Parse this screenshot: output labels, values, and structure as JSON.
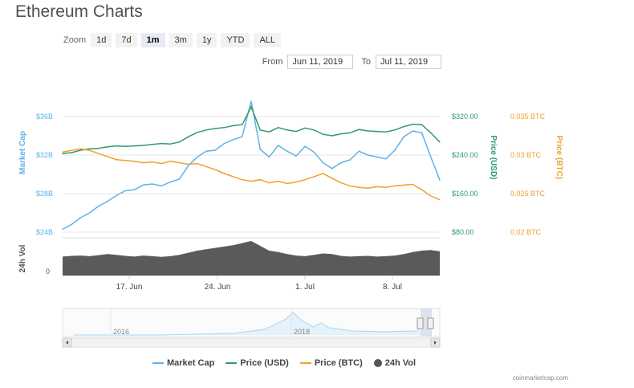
{
  "title": "Ethereum Charts",
  "zoom": {
    "label": "Zoom",
    "buttons": [
      "1d",
      "7d",
      "1m",
      "3m",
      "1y",
      "YTD",
      "ALL"
    ],
    "active": "1m"
  },
  "range": {
    "from_label": "From",
    "from_value": "Jun 11, 2019",
    "to_label": "To",
    "to_value": "Jul 11, 2019"
  },
  "legend": {
    "market_cap": "Market Cap",
    "price_usd": "Price (USD)",
    "price_btc": "Price (BTC)",
    "volume": "24h Vol"
  },
  "credit": "coinmarketcap.com",
  "colors": {
    "market_cap": "#5eb2e8",
    "price_usd": "#2d9c6e",
    "price_btc": "#f0a030",
    "volume": "#5a5a5a",
    "navigator": "#a9d7f0"
  },
  "chart_data": {
    "type": "line",
    "x_ticks": [
      "17. Jun",
      "24. Jun",
      "1. Jul",
      "8. Jul"
    ],
    "left_axis": {
      "label": "Market Cap",
      "ticks": [
        "$36B",
        "$32B",
        "$28B",
        "$24B"
      ]
    },
    "right_axis_usd": {
      "label": "Price (USD)",
      "ticks": [
        "$320.00",
        "$240.00",
        "$160.00",
        "$80.00"
      ]
    },
    "right_axis_btc": {
      "label": "Price (BTC)",
      "ticks": [
        "0.035 BTC",
        "0.03 BTC",
        "0.025 BTC",
        "0.02 BTC"
      ]
    },
    "volume_axis": {
      "label": "24h Vol",
      "ticks": [
        "0"
      ]
    },
    "navigator": {
      "labels": [
        "2016",
        "2018"
      ]
    },
    "series": [
      {
        "name": "Market Cap",
        "unit": "USD billions",
        "values": [
          24.3,
          24.8,
          25.5,
          26.0,
          26.7,
          27.2,
          27.8,
          28.3,
          28.4,
          28.9,
          29.0,
          28.8,
          29.2,
          29.5,
          30.9,
          31.8,
          32.4,
          32.5,
          33.2,
          33.6,
          33.9,
          37.6,
          32.6,
          31.8,
          33.0,
          32.4,
          31.9,
          32.9,
          32.3,
          31.2,
          30.6,
          31.2,
          31.5,
          32.4,
          32.0,
          31.8,
          31.6,
          32.5,
          33.9,
          34.5,
          34.3,
          31.8,
          29.4
        ]
      },
      {
        "name": "Price (USD)",
        "unit": "USD",
        "values": [
          243,
          245,
          250,
          253,
          254,
          257,
          259,
          258,
          259,
          260,
          262,
          264,
          263,
          267,
          278,
          287,
          292,
          295,
          297,
          301,
          303,
          340,
          292,
          288,
          297,
          292,
          289,
          296,
          292,
          283,
          280,
          284,
          286,
          293,
          290,
          289,
          288,
          292,
          299,
          304,
          303,
          286,
          267
        ]
      },
      {
        "name": "Price (BTC)",
        "unit": "BTC",
        "values": [
          0.0304,
          0.0306,
          0.0308,
          0.0306,
          0.0302,
          0.0298,
          0.0294,
          0.0293,
          0.0292,
          0.029,
          0.0291,
          0.0289,
          0.0292,
          0.029,
          0.0288,
          0.0289,
          0.0285,
          0.0281,
          0.0276,
          0.0272,
          0.0268,
          0.0266,
          0.0268,
          0.0264,
          0.0266,
          0.0263,
          0.0265,
          0.0268,
          0.0272,
          0.0276,
          0.027,
          0.0264,
          0.026,
          0.0258,
          0.0257,
          0.0259,
          0.0258,
          0.026,
          0.0261,
          0.0262,
          0.0255,
          0.0247,
          0.0242
        ]
      },
      {
        "name": "24h Vol",
        "unit": "relative",
        "values": [
          0.55,
          0.57,
          0.58,
          0.56,
          0.59,
          0.62,
          0.6,
          0.57,
          0.55,
          0.58,
          0.56,
          0.54,
          0.56,
          0.6,
          0.66,
          0.72,
          0.76,
          0.8,
          0.84,
          0.88,
          0.94,
          1.0,
          0.86,
          0.72,
          0.68,
          0.62,
          0.58,
          0.56,
          0.6,
          0.64,
          0.62,
          0.57,
          0.55,
          0.56,
          0.57,
          0.55,
          0.56,
          0.58,
          0.62,
          0.68,
          0.72,
          0.74,
          0.7
        ]
      }
    ]
  }
}
